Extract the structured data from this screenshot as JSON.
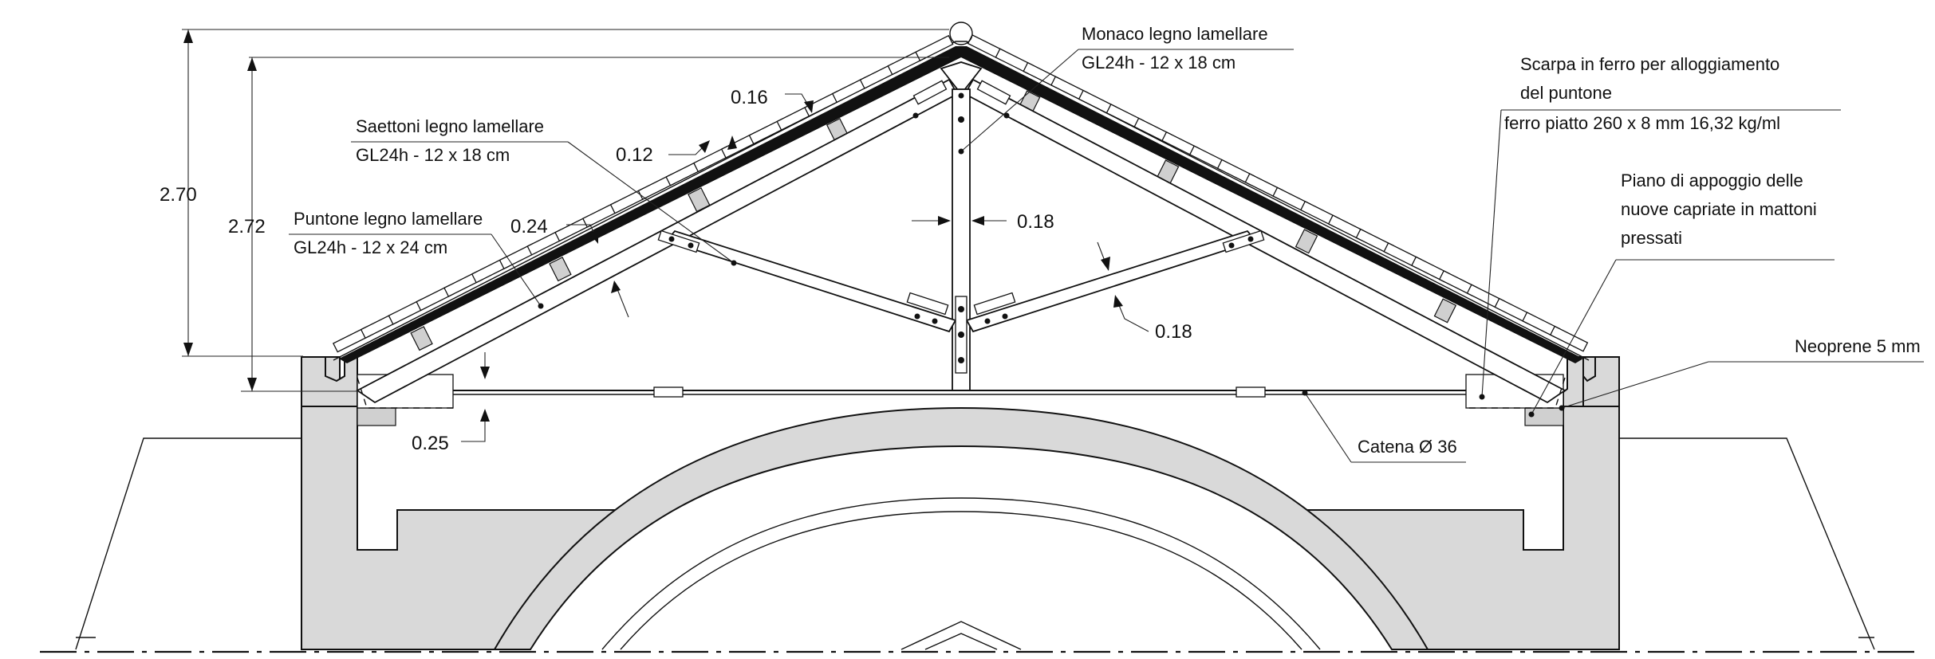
{
  "dimensions": {
    "overall_height": "2.70",
    "truss_height": "2.72",
    "roof_layer": "0.16",
    "roof_board": "0.12",
    "rafter_depth": "0.24",
    "king_post_width": "0.18",
    "strut_depth": "0.18",
    "bearing_height": "0.25"
  },
  "labels": {
    "king_post_title": "Monaco legno lamellare",
    "king_post_spec": "GL24h - 12 x 18 cm",
    "struts_title": "Saettoni legno lamellare",
    "struts_spec": "GL24h - 12 x 18 cm",
    "rafter_title": "Puntone legno lamellare",
    "rafter_spec": "GL24h - 12 x 24 cm",
    "shoe_line1": "Scarpa in ferro per alloggiamento",
    "shoe_line2": "del puntone",
    "shoe_line3": "ferro piatto 260 x 8 mm 16,32 kg/ml",
    "bearing_line1": "Piano di appoggio delle",
    "bearing_line2": "nuove capriate in mattoni",
    "bearing_line3": "pressati",
    "neoprene": "Neoprene 5 mm",
    "tie_rod": "Catena Ø 36"
  }
}
